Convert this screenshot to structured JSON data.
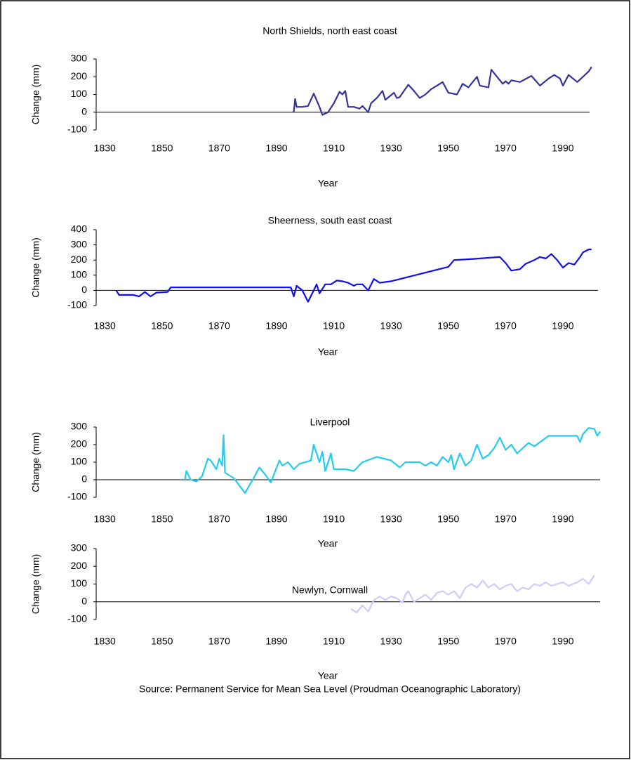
{
  "chart_data": [
    {
      "type": "line",
      "title": "North Shields, north east coast",
      "xlabel": "Year",
      "ylabel": "Change (mm)",
      "color": "#333399",
      "x": [
        1896,
        1896.5,
        1897,
        1899,
        1901,
        1903,
        1905,
        1906,
        1908,
        1910,
        1912,
        1913,
        1914,
        1915,
        1917,
        1919,
        1920,
        1922,
        1923,
        1925,
        1927,
        1928,
        1931,
        1932,
        1933,
        1936,
        1938,
        1940,
        1942,
        1944,
        1946,
        1948,
        1950,
        1953,
        1955,
        1957,
        1960,
        1961,
        1964,
        1965,
        1967,
        1969,
        1970,
        1971,
        1972,
        1975,
        1979,
        1982,
        1985,
        1987,
        1989,
        1990,
        1992,
        1995,
        1997,
        1999,
        2000
      ],
      "values": [
        0,
        75,
        30,
        30,
        35,
        105,
        30,
        -15,
        0,
        50,
        115,
        100,
        120,
        30,
        30,
        20,
        35,
        0,
        50,
        80,
        120,
        70,
        110,
        80,
        85,
        155,
        120,
        80,
        100,
        130,
        150,
        170,
        110,
        100,
        160,
        140,
        200,
        150,
        140,
        240,
        200,
        160,
        175,
        160,
        180,
        170,
        205,
        150,
        190,
        210,
        190,
        150,
        210,
        170,
        200,
        230,
        255
      ],
      "xlim": [
        1827,
        2003
      ],
      "ylim": [
        -100,
        300
      ],
      "xticks": [
        1830,
        1850,
        1870,
        1890,
        1910,
        1930,
        1950,
        1970,
        1990
      ],
      "yticks": [
        -100,
        0,
        100,
        200,
        300
      ]
    },
    {
      "type": "line",
      "title": "Sheerness, south east coast",
      "xlabel": "Year",
      "ylabel": "Change (mm)",
      "color": "#1010ee",
      "x": [
        1834,
        1835,
        1840,
        1842,
        1844,
        1846,
        1848,
        1852,
        1853,
        1895,
        1896,
        1897,
        1899,
        1901,
        1903,
        1904,
        1905,
        1907,
        1909,
        1911,
        1913,
        1915,
        1917,
        1918,
        1920,
        1922,
        1924,
        1926,
        1930,
        1950,
        1952,
        1957,
        1968,
        1970,
        1972,
        1975,
        1977,
        1980,
        1982,
        1984,
        1986,
        1988,
        1990,
        1992,
        1994,
        1996,
        1997,
        1999,
        2000
      ],
      "values": [
        0,
        -30,
        -30,
        -40,
        -10,
        -40,
        -15,
        -10,
        20,
        20,
        -40,
        30,
        0,
        -75,
        0,
        40,
        -20,
        40,
        40,
        65,
        60,
        50,
        30,
        40,
        40,
        0,
        75,
        50,
        60,
        155,
        200,
        205,
        220,
        180,
        130,
        140,
        175,
        200,
        220,
        210,
        240,
        200,
        150,
        180,
        170,
        220,
        250,
        270,
        270
      ],
      "xlim": [
        1827,
        2003
      ],
      "ylim": [
        -100,
        400
      ],
      "xticks": [
        1830,
        1850,
        1870,
        1890,
        1910,
        1930,
        1950,
        1970,
        1990
      ],
      "yticks": [
        -100,
        0,
        100,
        200,
        300,
        400
      ]
    },
    {
      "type": "line",
      "title": "Liverpool",
      "xlabel": "Year",
      "ylabel": "Change (mm)",
      "color": "#22ccee",
      "x": [
        1858,
        1858.5,
        1860,
        1862,
        1864,
        1866,
        1867,
        1869,
        1870,
        1871,
        1871.5,
        1872,
        1875,
        1879,
        1882,
        1884,
        1886,
        1888,
        1891,
        1892,
        1894,
        1896,
        1898,
        1902,
        1903,
        1905,
        1906,
        1907,
        1909,
        1910,
        1914,
        1917,
        1920,
        1925,
        1930,
        1933,
        1935,
        1940,
        1942,
        1944,
        1946,
        1948,
        1950,
        1951,
        1952,
        1954,
        1956,
        1958,
        1960,
        1962,
        1964,
        1966,
        1968,
        1970,
        1972,
        1974,
        1976,
        1978,
        1980,
        1985,
        1995,
        1996,
        1997,
        1999,
        2001,
        2002,
        2003
      ],
      "values": [
        0,
        50,
        0,
        -10,
        20,
        120,
        110,
        60,
        120,
        80,
        255,
        40,
        10,
        -75,
        10,
        70,
        30,
        -15,
        110,
        80,
        100,
        60,
        90,
        110,
        200,
        100,
        160,
        50,
        150,
        60,
        60,
        50,
        100,
        130,
        110,
        70,
        100,
        100,
        80,
        100,
        80,
        130,
        100,
        140,
        60,
        150,
        80,
        110,
        200,
        120,
        140,
        180,
        240,
        170,
        200,
        150,
        180,
        210,
        190,
        250,
        250,
        215,
        260,
        295,
        290,
        250,
        275
      ],
      "xlim": [
        1827,
        2003
      ],
      "ylim": [
        -100,
        300
      ],
      "xticks": [
        1830,
        1850,
        1870,
        1890,
        1910,
        1930,
        1950,
        1970,
        1990
      ],
      "yticks": [
        -100,
        0,
        100,
        200,
        300
      ]
    },
    {
      "type": "line",
      "title": "Newlyn, Cornwall",
      "xlabel": "Year",
      "ylabel": "Change (mm)",
      "color": "#ccccff",
      "x": [
        1916,
        1918,
        1920,
        1922,
        1924,
        1926,
        1928,
        1930,
        1932,
        1934,
        1935,
        1936,
        1938,
        1940,
        1942,
        1944,
        1946,
        1948,
        1950,
        1952,
        1954,
        1956,
        1958,
        1960,
        1962,
        1964,
        1966,
        1968,
        1970,
        1972,
        1974,
        1976,
        1978,
        1980,
        1982,
        1984,
        1986,
        1988,
        1990,
        1992,
        1995,
        1997,
        1999,
        2001
      ],
      "values": [
        -40,
        -60,
        -20,
        -55,
        10,
        30,
        10,
        30,
        20,
        -5,
        40,
        60,
        0,
        20,
        40,
        10,
        50,
        60,
        40,
        60,
        20,
        80,
        100,
        80,
        120,
        80,
        100,
        70,
        90,
        100,
        60,
        80,
        70,
        100,
        90,
        110,
        90,
        100,
        110,
        90,
        110,
        130,
        100,
        150
      ],
      "xlim": [
        1827,
        2003
      ],
      "ylim": [
        -100,
        300
      ],
      "xticks": [
        1830,
        1850,
        1870,
        1890,
        1910,
        1930,
        1950,
        1970,
        1990
      ],
      "yticks": [
        -100,
        0,
        100,
        200,
        300
      ]
    }
  ],
  "source": "Source: Permanent Service for Mean Sea Level (Proudman Oceanographic Laboratory)"
}
